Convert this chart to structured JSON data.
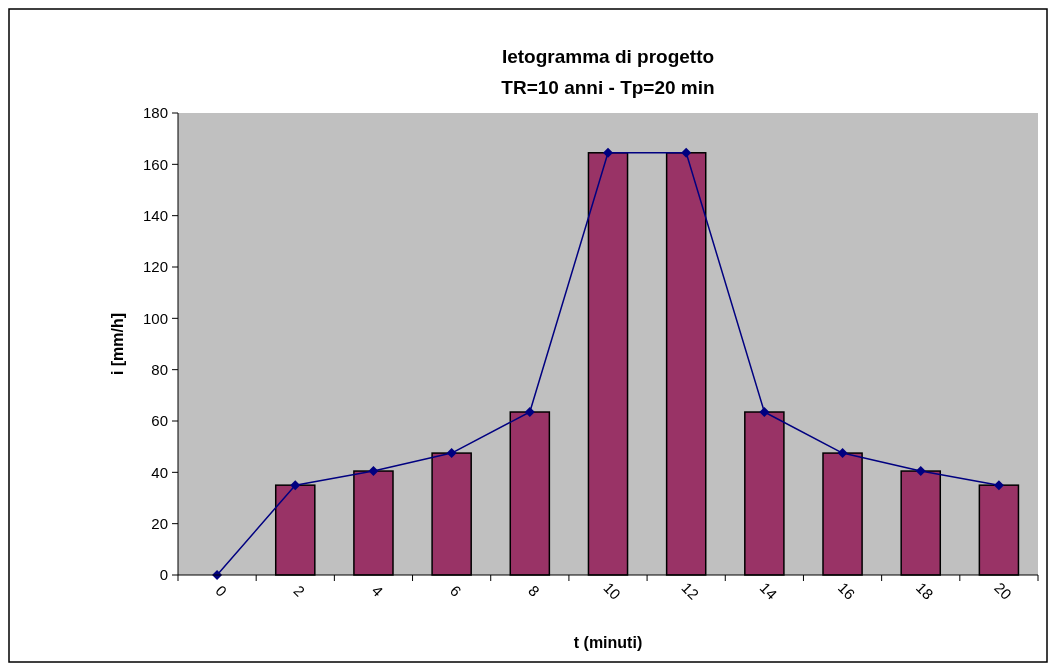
{
  "chart_data": {
    "type": "bar",
    "title": "Ietogramma di progetto",
    "subtitle": "TR=10 anni - Tp=20 min",
    "xlabel": "t (minuti)",
    "ylabel": "i [mm/h]",
    "categories": [
      "0",
      "2",
      "4",
      "6",
      "8",
      "10",
      "12",
      "14",
      "16",
      "18",
      "20"
    ],
    "series": [
      {
        "color": "#993366",
        "values": [
          0,
          35,
          40.5,
          47.5,
          63.5,
          164.5,
          164.5,
          63.5,
          47.5,
          40.5,
          35
        ]
      },
      {
        "type": "line",
        "color": "#000080",
        "marker": "diamond",
        "values": [
          0,
          35,
          40.5,
          47.5,
          63.5,
          164.5,
          164.5,
          63.5,
          47.5,
          40.5,
          35
        ]
      }
    ],
    "ylim": [
      0,
      180
    ],
    "yticks": [
      0,
      20,
      40,
      60,
      80,
      100,
      120,
      140,
      160,
      180
    ],
    "grid": false
  }
}
